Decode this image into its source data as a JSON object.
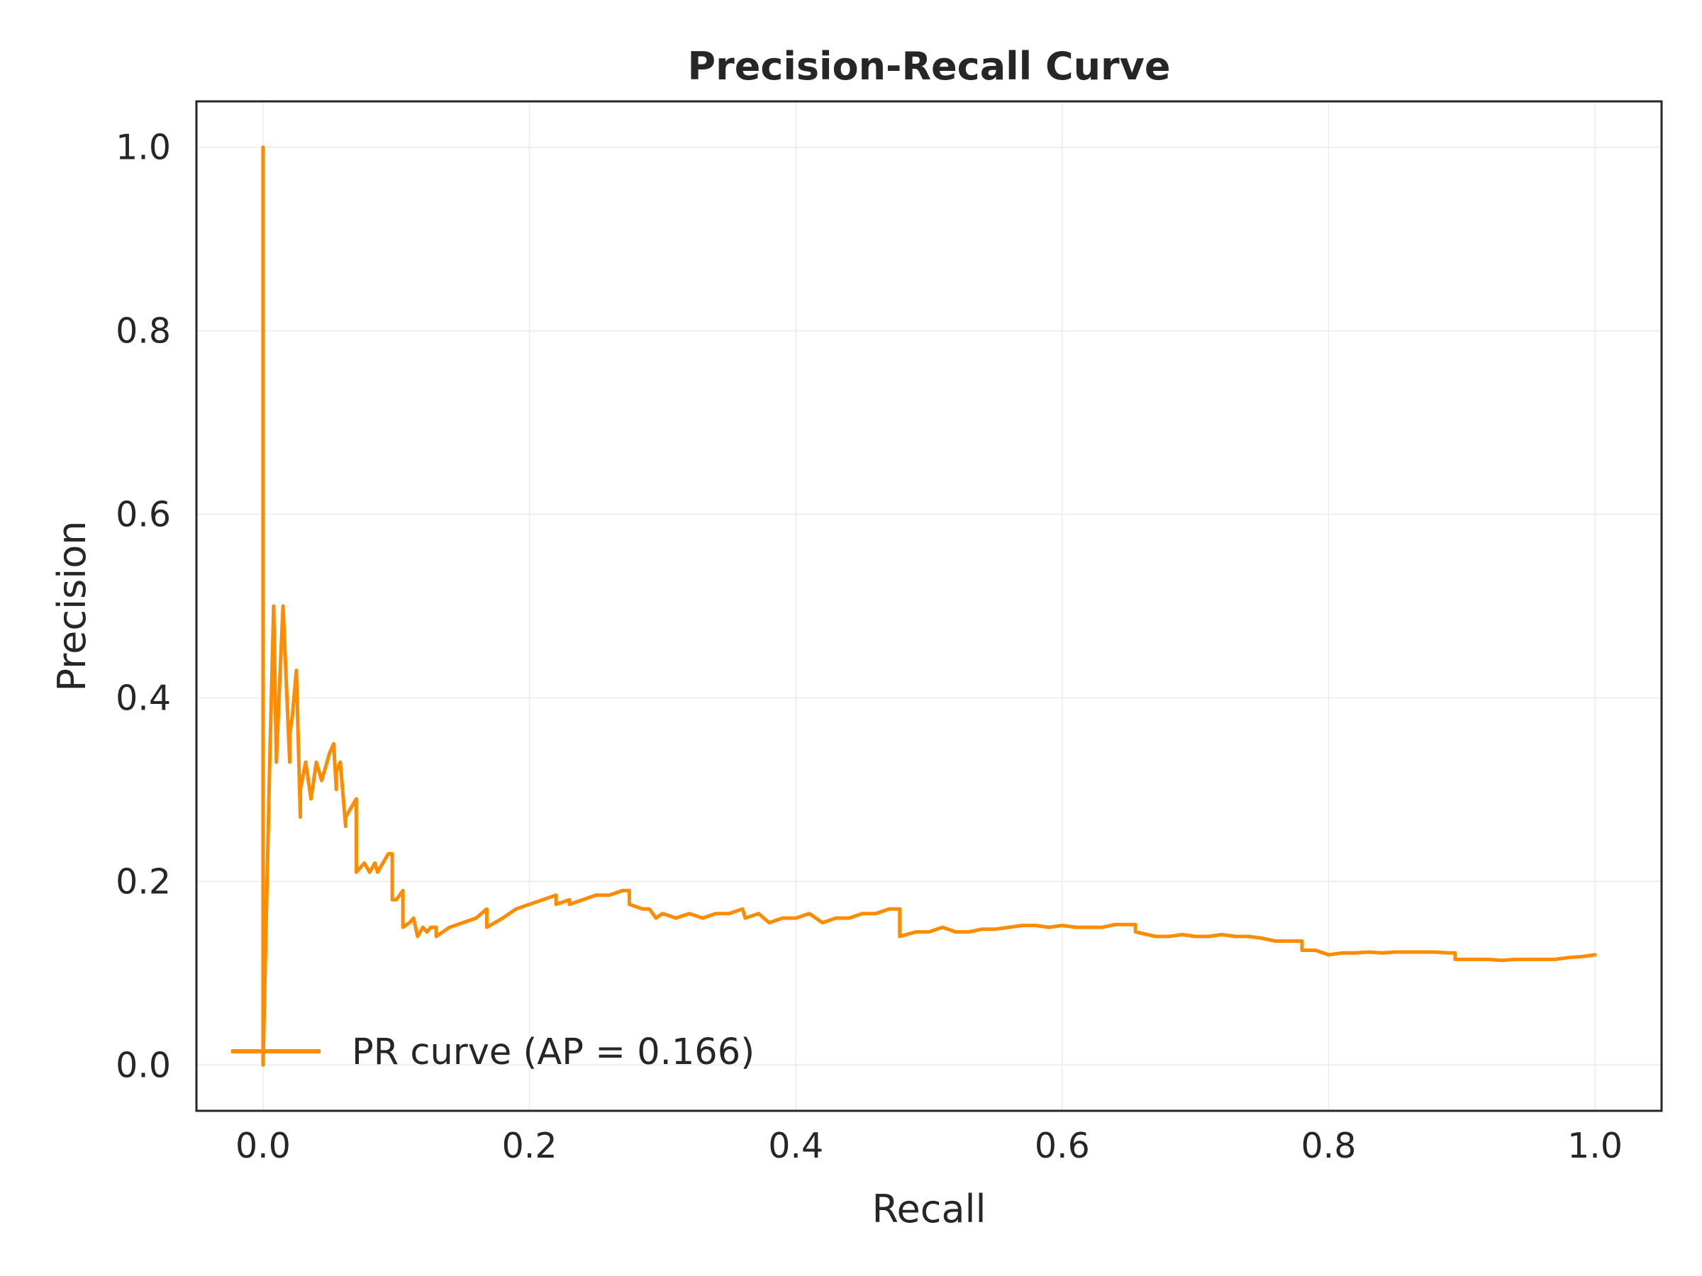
{
  "chart_data": {
    "type": "line",
    "title": "Precision-Recall Curve",
    "xlabel": "Recall",
    "ylabel": "Precision",
    "xlim": [
      -0.05,
      1.05
    ],
    "ylim": [
      -0.05,
      1.05
    ],
    "xticks": [
      0.0,
      0.2,
      0.4,
      0.6,
      0.8,
      1.0
    ],
    "xtick_labels": [
      "0.0",
      "0.2",
      "0.4",
      "0.6",
      "0.8",
      "1.0"
    ],
    "yticks": [
      0.0,
      0.2,
      0.4,
      0.6,
      0.8,
      1.0
    ],
    "ytick_labels": [
      "0.0",
      "0.2",
      "0.4",
      "0.6",
      "0.8",
      "1.0"
    ],
    "grid": true,
    "legend_position": "lower-left",
    "series": [
      {
        "name": "PR curve (AP = 0.166)",
        "color": "#ff8c00",
        "x": [
          0.0,
          0.0,
          0.0,
          0.005,
          0.008,
          0.01,
          0.012,
          0.015,
          0.02,
          0.02,
          0.022,
          0.025,
          0.028,
          0.028,
          0.032,
          0.036,
          0.038,
          0.04,
          0.044,
          0.048,
          0.05,
          0.053,
          0.055,
          0.055,
          0.058,
          0.062,
          0.062,
          0.066,
          0.07,
          0.07,
          0.076,
          0.08,
          0.084,
          0.086,
          0.09,
          0.094,
          0.097,
          0.097,
          0.1,
          0.105,
          0.105,
          0.11,
          0.113,
          0.116,
          0.12,
          0.123,
          0.126,
          0.13,
          0.13,
          0.14,
          0.15,
          0.16,
          0.168,
          0.168,
          0.18,
          0.19,
          0.2,
          0.21,
          0.22,
          0.22,
          0.23,
          0.23,
          0.24,
          0.25,
          0.26,
          0.27,
          0.275,
          0.275,
          0.285,
          0.29,
          0.295,
          0.3,
          0.31,
          0.32,
          0.33,
          0.34,
          0.35,
          0.36,
          0.362,
          0.372,
          0.38,
          0.39,
          0.4,
          0.41,
          0.42,
          0.43,
          0.44,
          0.45,
          0.46,
          0.47,
          0.478,
          0.478,
          0.49,
          0.5,
          0.51,
          0.52,
          0.53,
          0.54,
          0.55,
          0.56,
          0.57,
          0.58,
          0.59,
          0.6,
          0.61,
          0.62,
          0.63,
          0.64,
          0.65,
          0.655,
          0.655,
          0.67,
          0.68,
          0.69,
          0.7,
          0.71,
          0.72,
          0.73,
          0.74,
          0.75,
          0.76,
          0.77,
          0.78,
          0.78,
          0.79,
          0.8,
          0.81,
          0.82,
          0.83,
          0.84,
          0.85,
          0.86,
          0.87,
          0.88,
          0.89,
          0.895,
          0.895,
          0.91,
          0.92,
          0.93,
          0.94,
          0.95,
          0.96,
          0.97,
          0.98,
          0.99,
          1.0
        ],
        "y": [
          0.0,
          1.0,
          0.0,
          0.33,
          0.5,
          0.33,
          0.4,
          0.5,
          0.33,
          0.36,
          0.38,
          0.43,
          0.27,
          0.3,
          0.33,
          0.29,
          0.31,
          0.33,
          0.31,
          0.33,
          0.34,
          0.35,
          0.3,
          0.32,
          0.33,
          0.26,
          0.27,
          0.28,
          0.29,
          0.21,
          0.22,
          0.21,
          0.22,
          0.21,
          0.22,
          0.23,
          0.23,
          0.18,
          0.18,
          0.19,
          0.15,
          0.155,
          0.16,
          0.14,
          0.15,
          0.145,
          0.15,
          0.15,
          0.14,
          0.15,
          0.155,
          0.16,
          0.17,
          0.15,
          0.16,
          0.17,
          0.175,
          0.18,
          0.185,
          0.175,
          0.18,
          0.175,
          0.18,
          0.185,
          0.185,
          0.19,
          0.19,
          0.175,
          0.17,
          0.17,
          0.16,
          0.165,
          0.16,
          0.165,
          0.16,
          0.165,
          0.165,
          0.17,
          0.16,
          0.165,
          0.155,
          0.16,
          0.16,
          0.165,
          0.155,
          0.16,
          0.16,
          0.165,
          0.165,
          0.17,
          0.17,
          0.14,
          0.145,
          0.145,
          0.15,
          0.145,
          0.145,
          0.148,
          0.148,
          0.15,
          0.152,
          0.152,
          0.15,
          0.152,
          0.15,
          0.15,
          0.15,
          0.153,
          0.153,
          0.153,
          0.145,
          0.14,
          0.14,
          0.142,
          0.14,
          0.14,
          0.142,
          0.14,
          0.14,
          0.138,
          0.135,
          0.135,
          0.135,
          0.125,
          0.125,
          0.12,
          0.122,
          0.122,
          0.123,
          0.122,
          0.123,
          0.123,
          0.123,
          0.123,
          0.122,
          0.122,
          0.115,
          0.115,
          0.115,
          0.114,
          0.115,
          0.115,
          0.115,
          0.115,
          0.117,
          0.118,
          0.12
        ]
      }
    ]
  }
}
